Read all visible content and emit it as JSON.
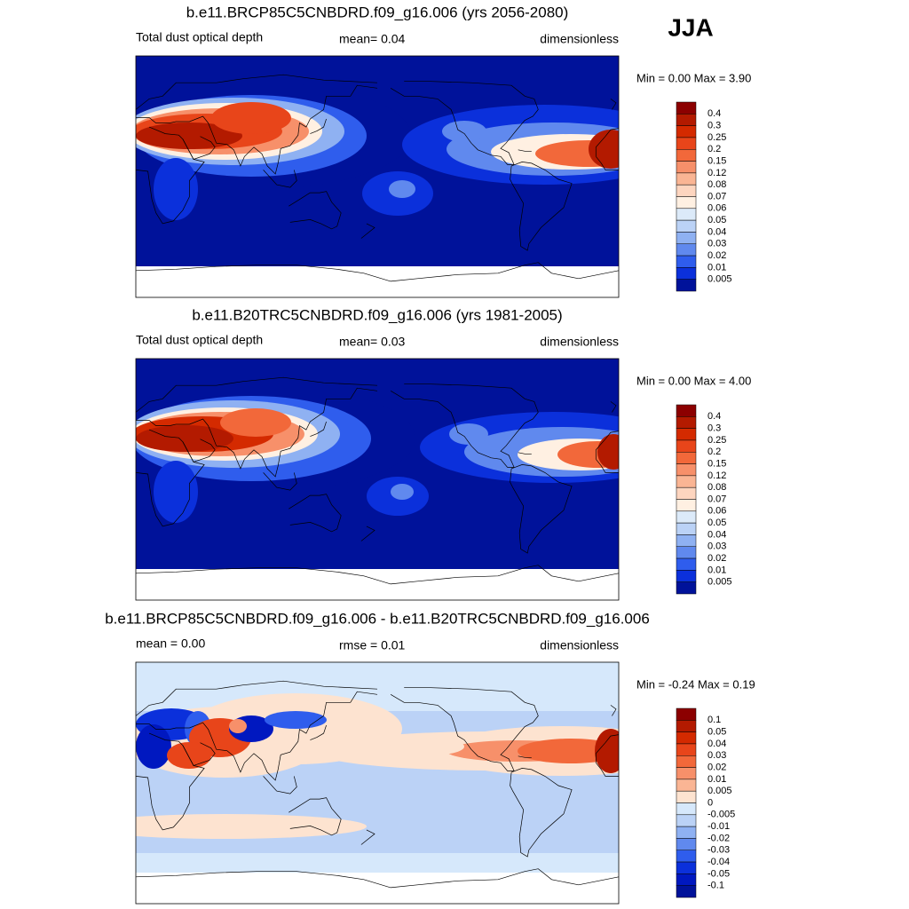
{
  "season": "JJA",
  "panels": [
    {
      "title": "b.e11.BRCP85C5CNBDRD.f09_g16.006 (yrs 2056-2080)",
      "left": "Total dust optical depth",
      "center": "mean=   0.04",
      "right": "dimensionless",
      "minmax": "Min =   0.00 Max =   3.90",
      "colorbar": {
        "labels": [
          "0.4",
          "0.3",
          "0.25",
          "0.2",
          "0.15",
          "0.12",
          "0.08",
          "0.07",
          "0.06",
          "0.05",
          "0.04",
          "0.03",
          "0.02",
          "0.01",
          "0.005"
        ],
        "colors": [
          "#8c0000",
          "#b31a00",
          "#d42a00",
          "#e8451a",
          "#f2683a",
          "#f7906a",
          "#fab594",
          "#fdd5bf",
          "#fff0e2",
          "#dceaf9",
          "#bbd2f6",
          "#8fb1f2",
          "#6089ee",
          "#2f5ded",
          "#0b30db",
          "#00129a"
        ]
      }
    },
    {
      "title": "b.e11.B20TRC5CNBDRD.f09_g16.006 (yrs 1981-2005)",
      "left": "Total dust optical depth",
      "center": "mean=   0.03",
      "right": "dimensionless",
      "minmax": "Min =   0.00 Max =   4.00",
      "colorbar": {
        "labels": [
          "0.4",
          "0.3",
          "0.25",
          "0.2",
          "0.15",
          "0.12",
          "0.08",
          "0.07",
          "0.06",
          "0.05",
          "0.04",
          "0.03",
          "0.02",
          "0.01",
          "0.005"
        ],
        "colors": [
          "#8c0000",
          "#b31a00",
          "#d42a00",
          "#e8451a",
          "#f2683a",
          "#f7906a",
          "#fab594",
          "#fdd5bf",
          "#fff0e2",
          "#dceaf9",
          "#bbd2f6",
          "#8fb1f2",
          "#6089ee",
          "#2f5ded",
          "#0b30db",
          "#00129a"
        ]
      }
    },
    {
      "title": "b.e11.BRCP85C5CNBDRD.f09_g16.006 - b.e11.B20TRC5CNBDRD.f09_g16.006",
      "left": "mean =   0.00",
      "center": "rmse =   0.01",
      "right": "dimensionless",
      "minmax": "Min =  -0.24 Max =   0.19",
      "colorbar": {
        "labels": [
          "0.1",
          "0.05",
          "0.04",
          "0.03",
          "0.02",
          "0.01",
          "0.005",
          "0",
          "-0.005",
          "-0.01",
          "-0.02",
          "-0.03",
          "-0.04",
          "-0.05",
          "-0.1"
        ],
        "colors": [
          "#8c0000",
          "#b31a00",
          "#d42a00",
          "#e8451a",
          "#f2683a",
          "#f7906a",
          "#fab594",
          "#fde3d0",
          "#d6e8fb",
          "#bbd2f6",
          "#8fb1f2",
          "#6089ee",
          "#2f5ded",
          "#0b30db",
          "#0018c0",
          "#00129a"
        ]
      }
    }
  ]
}
